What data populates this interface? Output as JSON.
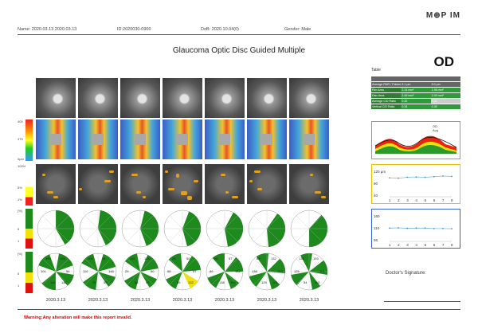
{
  "brand": "M⊕P IM",
  "header": {
    "name": "Name: 2020.03.13 2020.03.13",
    "id": "ID:2020030-0900",
    "dob": "DoB: 2020.10.04(0)",
    "gender": "Gender: Male"
  },
  "title": "Glaucoma Optic Disc Guided Multiple",
  "eye": "OD",
  "scales": {
    "thickness": [
      "400",
      "475",
      "0μm"
    ],
    "prob": [
      "100%",
      "5%",
      "1%"
    ],
    "sector": [
      "[%]",
      "5",
      "1"
    ],
    "sector2": [
      "[%]",
      "5",
      "1"
    ]
  },
  "sector_values": [
    "193",
    "125",
    "101",
    "54",
    "110",
    "148",
    "29",
    "50",
    "68",
    "57",
    "89",
    "132",
    "138"
  ],
  "dates": [
    "2020.3.13",
    "2020.3.13",
    "2020.3.13",
    "2020.3.13",
    "2020.3.13",
    "2020.3.13",
    "2020.3.13"
  ],
  "table": {
    "label": "Table",
    "rows": [
      [
        "Average RNFL Thickness",
        "5.1 μm",
        "5.0 μm"
      ],
      [
        "Rim Area",
        "2.14 mm²",
        "1.98 mm²"
      ],
      [
        "Disc Area",
        "2.49 mm²",
        "2.49 mm²"
      ],
      [
        "Average C/D Ratio",
        "0.32",
        "0.32"
      ],
      [
        "Vertical C/D Ratio",
        "0.34",
        "0.35"
      ]
    ]
  },
  "tsnit": {
    "legend": [
      "OD",
      "Avg"
    ],
    "axis": [
      "T",
      "S",
      "N",
      "I",
      "T"
    ]
  },
  "trend1": {
    "ylabels": [
      "120 μm",
      "90",
      "40"
    ],
    "x": [
      "1",
      "2",
      "3",
      "4",
      "5",
      "6",
      "7",
      "8"
    ],
    "values": [
      98,
      97,
      100,
      101,
      100,
      102,
      104,
      103
    ]
  },
  "trend2": {
    "ylabels": [
      "160",
      "110",
      "56"
    ],
    "x": [
      "1",
      "2",
      "3",
      "4",
      "5",
      "6",
      "7",
      "8"
    ],
    "values": [
      107,
      108,
      106,
      107,
      107,
      105,
      105,
      104
    ]
  },
  "signature": "Doctor's Signature:",
  "warning": "Warning:Any alteration will make this report invalid.",
  "colors": {
    "green": "#1e8a1e",
    "yellow": "#f2e20a",
    "red": "#e01010",
    "accent": "#2a6fd6"
  }
}
